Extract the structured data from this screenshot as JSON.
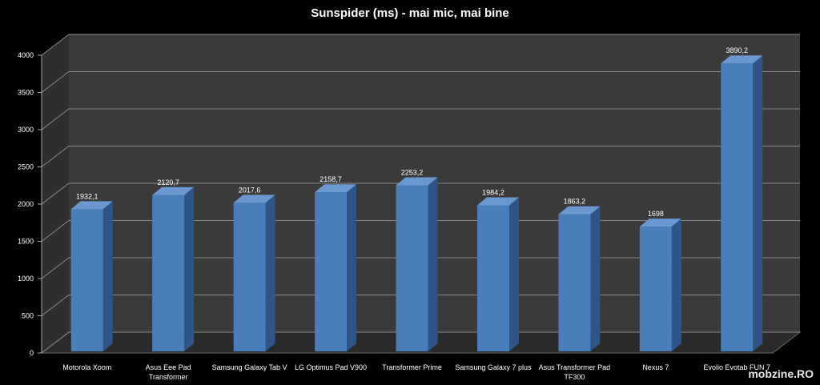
{
  "chart_data": {
    "type": "bar",
    "title": "Sunspider (ms) - mai mic, mai bine",
    "categories": [
      "Motorola Xoom",
      "Asus Eee Pad Transformer",
      "Samsung Galaxy Tab V",
      "LG Optimus Pad V900",
      "Transformer Prime",
      "Samsung Galaxy 7 plus",
      "Asus Transformer Pad TF300",
      "Nexus 7",
      "Evolio Evotab FUN 7"
    ],
    "values": [
      1932.1,
      2120.7,
      2017.6,
      2158.7,
      2253.2,
      1984.2,
      1863.2,
      1698,
      3890.2
    ],
    "data_labels": [
      "1932,1",
      "2120,7",
      "2017,6",
      "2158,7",
      "2253,2",
      "1984,2",
      "1863,2",
      "1698",
      "3890,2"
    ],
    "ylim": [
      0,
      4000
    ],
    "yticks": [
      0,
      500,
      1000,
      1500,
      2000,
      2500,
      3000,
      3500,
      4000
    ],
    "grid": true,
    "legend": "none",
    "bar_color": "#4a7ebb",
    "bar_side_color": "#2f5488",
    "bar_top_color": "#6b98d0",
    "wall_color": "#3a3a3a",
    "floor_color": "#2a2a2a",
    "grid_color": "#8a8a8a"
  },
  "watermark": "mobzine.RO"
}
